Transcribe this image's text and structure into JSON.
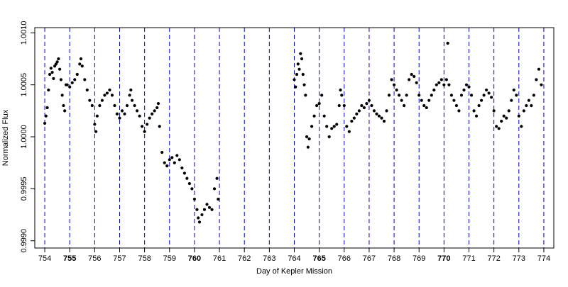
{
  "chart_data": {
    "type": "scatter",
    "title": "",
    "xlabel": "Day of Kepler Mission",
    "ylabel": "Normalized Flux",
    "xlim": [
      753.6,
      774.4
    ],
    "ylim": [
      0.99893,
      1.00105
    ],
    "x_ticks": [
      754,
      755,
      756,
      757,
      758,
      759,
      760,
      761,
      762,
      763,
      764,
      765,
      766,
      767,
      768,
      769,
      770,
      771,
      772,
      773,
      774
    ],
    "x_tick_labels": [
      "754",
      "755",
      "756",
      "757",
      "758",
      "759",
      "760",
      "761",
      "762",
      "763",
      "764",
      "765",
      "766",
      "767",
      "768",
      "769",
      "770",
      "771",
      "772",
      "773",
      "774"
    ],
    "x_tick_bold": [
      "755",
      "760",
      "765",
      "770"
    ],
    "y_ticks": [
      0.999,
      0.9995,
      1.0,
      1.0005,
      1.001
    ],
    "y_tick_labels": [
      "0.9990",
      "0.9995",
      "1.0000",
      "1.0005",
      "1.0010"
    ],
    "vlines": [
      754,
      755,
      756,
      757,
      758,
      759,
      760,
      761,
      762,
      763,
      764,
      765,
      766,
      767,
      768,
      769,
      770,
      771,
      772,
      773,
      774
    ],
    "vline_color": "#0000cc",
    "point_color": "#000000",
    "gap": [
      761.0,
      763.9
    ],
    "series": [
      {
        "values": [
          [
            754.0,
            1.00013
          ],
          [
            754.05,
            1.0002
          ],
          [
            754.1,
            1.00028
          ],
          [
            754.15,
            1.00045
          ],
          [
            754.2,
            1.0006
          ],
          [
            754.25,
            1.00066
          ],
          [
            754.3,
            1.00062
          ],
          [
            754.35,
            1.00056
          ],
          [
            754.4,
            1.00068
          ],
          [
            754.45,
            1.0007
          ],
          [
            754.5,
            1.00072
          ],
          [
            754.55,
            1.00075
          ],
          [
            754.6,
            1.00065
          ],
          [
            754.65,
            1.00055
          ],
          [
            754.7,
            1.0004
          ],
          [
            754.75,
            1.0003
          ],
          [
            754.8,
            1.00025
          ],
          [
            754.85,
            1.0005
          ],
          [
            754.9,
            1.0005
          ],
          [
            755.0,
            1.00048
          ],
          [
            755.1,
            1.00052
          ],
          [
            755.2,
            1.00055
          ],
          [
            755.3,
            1.0006
          ],
          [
            755.4,
            1.0007
          ],
          [
            755.45,
            1.00075
          ],
          [
            755.5,
            1.00068
          ],
          [
            755.6,
            1.00055
          ],
          [
            755.7,
            1.00045
          ],
          [
            755.8,
            1.00035
          ],
          [
            755.9,
            1.0003
          ],
          [
            756.0,
            1.00012
          ],
          [
            756.05,
            1.00005
          ],
          [
            756.1,
            1.0002
          ],
          [
            756.2,
            1.0003
          ],
          [
            756.3,
            1.00035
          ],
          [
            756.4,
            1.0004
          ],
          [
            756.5,
            1.00042
          ],
          [
            756.6,
            1.00045
          ],
          [
            756.7,
            1.0004
          ],
          [
            756.8,
            1.0003
          ],
          [
            756.9,
            1.00022
          ],
          [
            757.0,
            1.00018
          ],
          [
            757.1,
            1.00025
          ],
          [
            757.2,
            1.00022
          ],
          [
            757.3,
            1.0003
          ],
          [
            757.4,
            1.0004
          ],
          [
            757.45,
            1.00045
          ],
          [
            757.5,
            1.00035
          ],
          [
            757.6,
            1.0003
          ],
          [
            757.7,
            1.00025
          ],
          [
            757.8,
            1.0002
          ],
          [
            757.9,
            1.0001
          ],
          [
            758.0,
            1.00005
          ],
          [
            758.1,
            1.00012
          ],
          [
            758.2,
            1.00018
          ],
          [
            758.3,
            1.00022
          ],
          [
            758.4,
            1.00025
          ],
          [
            758.5,
            1.00028
          ],
          [
            758.55,
            1.00032
          ],
          [
            758.6,
            1.0001
          ],
          [
            758.7,
            0.99985
          ],
          [
            758.8,
            0.99975
          ],
          [
            758.9,
            0.99972
          ],
          [
            759.0,
            0.99978
          ],
          [
            759.1,
            0.9998
          ],
          [
            759.2,
            0.99975
          ],
          [
            759.3,
            0.99982
          ],
          [
            759.4,
            0.99978
          ],
          [
            759.5,
            0.9997
          ],
          [
            759.6,
            0.99965
          ],
          [
            759.7,
            0.9996
          ],
          [
            759.8,
            0.99955
          ],
          [
            759.9,
            0.9995
          ],
          [
            760.0,
            0.9994
          ],
          [
            760.1,
            0.9993
          ],
          [
            760.15,
            0.99922
          ],
          [
            760.2,
            0.99918
          ],
          [
            760.3,
            0.99925
          ],
          [
            760.4,
            0.9993
          ],
          [
            760.5,
            0.99935
          ],
          [
            760.6,
            0.99932
          ],
          [
            760.7,
            0.9993
          ],
          [
            760.8,
            0.9995
          ],
          [
            760.9,
            0.9996
          ],
          [
            760.95,
            0.9994
          ],
          [
            764.0,
            1.00055
          ],
          [
            764.05,
            1.00048
          ],
          [
            764.1,
            1.0006
          ],
          [
            764.15,
            1.0007
          ],
          [
            764.2,
            1.00065
          ],
          [
            764.25,
            1.0008
          ],
          [
            764.3,
            1.00075
          ],
          [
            764.35,
            1.0006
          ],
          [
            764.4,
            1.0005
          ],
          [
            764.45,
            1.0004
          ],
          [
            764.5,
            1.0
          ],
          [
            764.55,
            0.9999
          ],
          [
            764.6,
            0.99998
          ],
          [
            764.7,
            1.0001
          ],
          [
            764.8,
            1.0002
          ],
          [
            764.9,
            1.0003
          ],
          [
            765.0,
            1.00032
          ],
          [
            765.1,
            1.0004
          ],
          [
            765.2,
            1.0002
          ],
          [
            765.3,
            1.0001
          ],
          [
            765.4,
            1.0
          ],
          [
            765.5,
            1.00008
          ],
          [
            765.6,
            1.0001
          ],
          [
            765.7,
            1.00012
          ],
          [
            765.8,
            1.0003
          ],
          [
            765.85,
            1.00045
          ],
          [
            765.9,
            1.0004
          ],
          [
            766.0,
            1.0003
          ],
          [
            766.1,
            1.0001
          ],
          [
            766.2,
            1.00005
          ],
          [
            766.3,
            1.00015
          ],
          [
            766.4,
            1.00018
          ],
          [
            766.5,
            1.00022
          ],
          [
            766.6,
            1.00025
          ],
          [
            766.7,
            1.0003
          ],
          [
            766.8,
            1.00028
          ],
          [
            766.9,
            1.00032
          ],
          [
            767.0,
            1.00035
          ],
          [
            767.1,
            1.0003
          ],
          [
            767.2,
            1.00025
          ],
          [
            767.3,
            1.00022
          ],
          [
            767.4,
            1.0002
          ],
          [
            767.5,
            1.00018
          ],
          [
            767.6,
            1.00015
          ],
          [
            767.7,
            1.00025
          ],
          [
            767.8,
            1.0004
          ],
          [
            767.9,
            1.00055
          ],
          [
            768.0,
            1.0005
          ],
          [
            768.1,
            1.00045
          ],
          [
            768.2,
            1.0004
          ],
          [
            768.3,
            1.00035
          ],
          [
            768.4,
            1.0003
          ],
          [
            768.5,
            1.0004
          ],
          [
            768.6,
            1.00055
          ],
          [
            768.7,
            1.0006
          ],
          [
            768.8,
            1.00058
          ],
          [
            768.9,
            1.00052
          ],
          [
            769.0,
            1.0004
          ],
          [
            769.1,
            1.00035
          ],
          [
            769.2,
            1.0003
          ],
          [
            769.3,
            1.00028
          ],
          [
            769.4,
            1.00035
          ],
          [
            769.5,
            1.0004
          ],
          [
            769.6,
            1.00045
          ],
          [
            769.7,
            1.0005
          ],
          [
            769.8,
            1.00052
          ],
          [
            769.9,
            1.00055
          ],
          [
            770.0,
            1.0005
          ],
          [
            770.1,
            1.00055
          ],
          [
            770.15,
            1.0009
          ],
          [
            770.2,
            1.0005
          ],
          [
            770.3,
            1.0004
          ],
          [
            770.4,
            1.00035
          ],
          [
            770.5,
            1.0003
          ],
          [
            770.6,
            1.00025
          ],
          [
            770.7,
            1.0004
          ],
          [
            770.8,
            1.00045
          ],
          [
            770.9,
            1.0005
          ],
          [
            771.0,
            1.00048
          ],
          [
            771.1,
            1.0004
          ],
          [
            771.2,
            1.00025
          ],
          [
            771.3,
            1.0002
          ],
          [
            771.4,
            1.0003
          ],
          [
            771.5,
            1.00035
          ],
          [
            771.6,
            1.0004
          ],
          [
            771.7,
            1.00045
          ],
          [
            771.8,
            1.00042
          ],
          [
            771.9,
            1.00038
          ],
          [
            772.0,
            1.00025
          ],
          [
            772.1,
            1.0001
          ],
          [
            772.2,
            1.00008
          ],
          [
            772.3,
            1.00015
          ],
          [
            772.4,
            1.0002
          ],
          [
            772.5,
            1.00018
          ],
          [
            772.6,
            1.00025
          ],
          [
            772.7,
            1.00035
          ],
          [
            772.8,
            1.00045
          ],
          [
            772.9,
            1.0004
          ],
          [
            773.0,
            1.0002
          ],
          [
            773.1,
            1.0001
          ],
          [
            773.2,
            1.00025
          ],
          [
            773.3,
            1.0003
          ],
          [
            773.4,
            1.00035
          ],
          [
            773.5,
            1.0003
          ],
          [
            773.6,
            1.0004
          ],
          [
            773.7,
            1.00055
          ],
          [
            773.8,
            1.00065
          ],
          [
            773.9,
            1.0005
          ]
        ]
      }
    ]
  }
}
